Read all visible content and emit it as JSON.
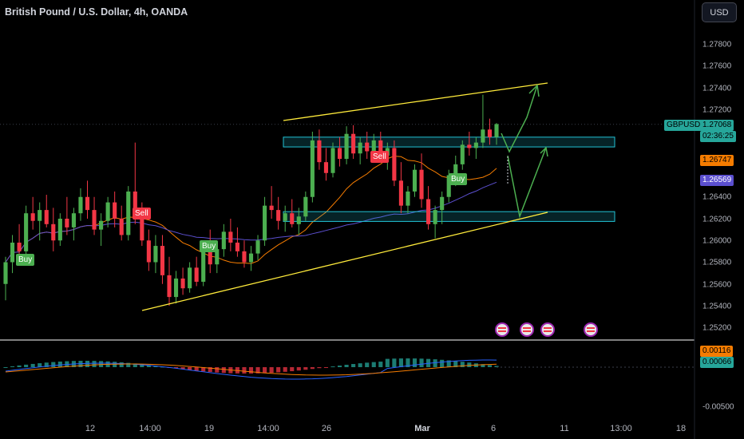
{
  "header": {
    "title": "British Pound / U.S. Dollar, 4h, OANDA",
    "currency_button": "USD"
  },
  "colors": {
    "up": "#26a69a",
    "up_candle": "#4caf50",
    "down_candle": "#f23645",
    "trendline": "#ffeb3b",
    "zone": "#22c3d6",
    "projection": "#4caf50",
    "ma_orange": "#f57c00",
    "ma_purple": "#5b4fcf"
  },
  "price_axis": {
    "labels": [
      "1.27800",
      "1.27600",
      "1.27400",
      "1.27200",
      "1.26400",
      "1.26200",
      "1.26000",
      "1.25800",
      "1.25600",
      "1.25400",
      "1.25200"
    ]
  },
  "price_tags": {
    "symbol": "GBPUSD",
    "last_price": "1.27068",
    "countdown": "02:36:25",
    "ma_orange_value": "1.26747",
    "ma_purple_value": "1.26569"
  },
  "indicator_axis": {
    "value_orange": "0.00116",
    "value_green": "0.00066",
    "low_label": "-0.00500"
  },
  "time_axis": {
    "labels": [
      "12",
      "14:00",
      "19",
      "14:00",
      "26",
      "Mar",
      "6",
      "11",
      "13:00",
      "18"
    ]
  },
  "signals": [
    {
      "text": "Buy",
      "type": "buy"
    },
    {
      "text": "Sell",
      "type": "sell"
    },
    {
      "text": "Buy",
      "type": "buy"
    },
    {
      "text": "Sell",
      "type": "sell"
    },
    {
      "text": "Buy",
      "type": "buy"
    }
  ],
  "events": [
    {
      "icon": "us-flag-icon"
    },
    {
      "icon": "us-flag-icon"
    },
    {
      "icon": "us-flag-icon"
    },
    {
      "icon": "uk-flag-icon"
    }
  ],
  "chart_data": {
    "type": "candlestick",
    "symbol": "GBPUSD",
    "timeframe": "4h",
    "ylim": [
      1.2512,
      1.2812
    ],
    "last_price": 1.27068,
    "zones": [
      {
        "low": 1.2686,
        "high": 1.2695
      },
      {
        "low": 1.26175,
        "high": 1.26265
      }
    ],
    "candles": [
      [
        1.256,
        1.2585,
        1.2545,
        1.258
      ],
      [
        1.258,
        1.2605,
        1.257,
        1.2598
      ],
      [
        1.2598,
        1.2615,
        1.2585,
        1.259
      ],
      [
        1.259,
        1.2632,
        1.2585,
        1.2625
      ],
      [
        1.2625,
        1.264,
        1.261,
        1.2618
      ],
      [
        1.2618,
        1.2635,
        1.26,
        1.2628
      ],
      [
        1.2628,
        1.2642,
        1.2612,
        1.2615
      ],
      [
        1.2615,
        1.263,
        1.259,
        1.26
      ],
      [
        1.26,
        1.2625,
        1.2595,
        1.262
      ],
      [
        1.262,
        1.264,
        1.2605,
        1.2612
      ],
      [
        1.2612,
        1.263,
        1.26,
        1.2625
      ],
      [
        1.2625,
        1.2648,
        1.2618,
        1.264
      ],
      [
        1.264,
        1.2655,
        1.262,
        1.2628
      ],
      [
        1.2628,
        1.264,
        1.2605,
        1.261
      ],
      [
        1.261,
        1.2625,
        1.2595,
        1.2618
      ],
      [
        1.2618,
        1.264,
        1.2612,
        1.2635
      ],
      [
        1.2635,
        1.2645,
        1.2612,
        1.262
      ],
      [
        1.262,
        1.2632,
        1.26,
        1.2605
      ],
      [
        1.2605,
        1.265,
        1.26,
        1.2645
      ],
      [
        1.2645,
        1.269,
        1.2615,
        1.2625
      ],
      [
        1.2625,
        1.2635,
        1.2595,
        1.26
      ],
      [
        1.26,
        1.261,
        1.2572,
        1.258
      ],
      [
        1.258,
        1.2605,
        1.257,
        1.2595
      ],
      [
        1.2595,
        1.2605,
        1.256,
        1.2568
      ],
      [
        1.2568,
        1.2585,
        1.254,
        1.2548
      ],
      [
        1.2548,
        1.2572,
        1.2542,
        1.2565
      ],
      [
        1.2565,
        1.2575,
        1.255,
        1.2556
      ],
      [
        1.2556,
        1.258,
        1.2552,
        1.2575
      ],
      [
        1.2575,
        1.2585,
        1.2558,
        1.2562
      ],
      [
        1.2562,
        1.26,
        1.2558,
        1.2595
      ],
      [
        1.2595,
        1.261,
        1.257,
        1.2578
      ],
      [
        1.2578,
        1.2598,
        1.257,
        1.2592
      ],
      [
        1.2592,
        1.2615,
        1.2585,
        1.2608
      ],
      [
        1.2608,
        1.262,
        1.259,
        1.2598
      ],
      [
        1.2598,
        1.2612,
        1.2585,
        1.259
      ],
      [
        1.259,
        1.26,
        1.2575,
        1.258
      ],
      [
        1.258,
        1.2595,
        1.2572,
        1.2588
      ],
      [
        1.2588,
        1.2605,
        1.2582,
        1.26
      ],
      [
        1.26,
        1.264,
        1.2595,
        1.2632
      ],
      [
        1.2632,
        1.265,
        1.262,
        1.2628
      ],
      [
        1.2628,
        1.264,
        1.261,
        1.2618
      ],
      [
        1.2618,
        1.2632,
        1.2608,
        1.2625
      ],
      [
        1.2625,
        1.2638,
        1.2612,
        1.2615
      ],
      [
        1.2615,
        1.263,
        1.2605,
        1.2622
      ],
      [
        1.2622,
        1.2645,
        1.2618,
        1.264
      ],
      [
        1.264,
        1.27,
        1.2635,
        1.2692
      ],
      [
        1.2692,
        1.2702,
        1.2665,
        1.2672
      ],
      [
        1.2672,
        1.2685,
        1.2655,
        1.2662
      ],
      [
        1.2662,
        1.269,
        1.2658,
        1.2685
      ],
      [
        1.2685,
        1.2695,
        1.2668,
        1.2675
      ],
      [
        1.2675,
        1.2705,
        1.267,
        1.2698
      ],
      [
        1.2698,
        1.2706,
        1.2675,
        1.268
      ],
      [
        1.268,
        1.2695,
        1.267,
        1.269
      ],
      [
        1.269,
        1.27,
        1.2675,
        1.2682
      ],
      [
        1.2682,
        1.2698,
        1.2675,
        1.2692
      ],
      [
        1.2692,
        1.27,
        1.2672,
        1.2678
      ],
      [
        1.2678,
        1.269,
        1.2665,
        1.2685
      ],
      [
        1.2685,
        1.2692,
        1.265,
        1.2655
      ],
      [
        1.2655,
        1.2672,
        1.2625,
        1.2632
      ],
      [
        1.2632,
        1.265,
        1.2625,
        1.2645
      ],
      [
        1.2645,
        1.267,
        1.264,
        1.2665
      ],
      [
        1.2665,
        1.268,
        1.263,
        1.2638
      ],
      [
        1.2638,
        1.265,
        1.261,
        1.2615
      ],
      [
        1.2615,
        1.2632,
        1.2602,
        1.2628
      ],
      [
        1.2628,
        1.2645,
        1.2615,
        1.264
      ],
      [
        1.264,
        1.2665,
        1.2635,
        1.266
      ],
      [
        1.266,
        1.2678,
        1.265,
        1.267
      ],
      [
        1.267,
        1.2692,
        1.2665,
        1.2688
      ],
      [
        1.2688,
        1.27,
        1.2678,
        1.2685
      ],
      [
        1.2685,
        1.2695,
        1.2675,
        1.269
      ],
      [
        1.269,
        1.2734,
        1.2685,
        1.2702
      ],
      [
        1.2702,
        1.2712,
        1.2688,
        1.2695
      ],
      [
        1.2695,
        1.2708,
        1.2688,
        1.2707
      ]
    ]
  }
}
